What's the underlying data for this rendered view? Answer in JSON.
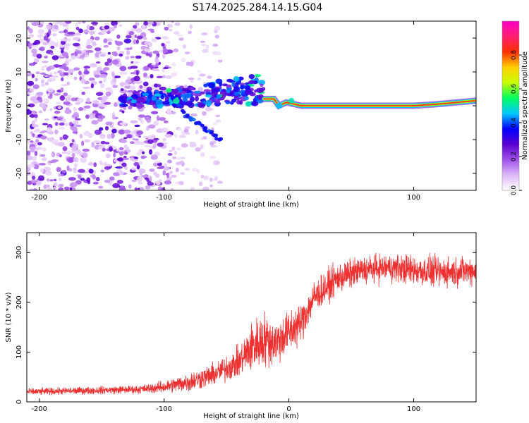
{
  "title": "S174.2025.284.14.15.G04",
  "chart_data": [
    {
      "type": "heatmap",
      "name": "spectrogram",
      "xlabel": "Height of straight line (km)",
      "ylabel": "Frequency (Hz)",
      "xlim": [
        -210,
        150
      ],
      "ylim": [
        -25,
        25
      ],
      "xticks": [
        -200,
        -100,
        0,
        100
      ],
      "yticks": [
        -20,
        -10,
        0,
        10,
        20
      ],
      "colorbar": {
        "label": "Normalized spectral amplitude",
        "range": [
          0,
          1
        ],
        "ticks": [
          0.0,
          0.2,
          0.4,
          0.6,
          0.8
        ],
        "tick_labels": [
          "0.0",
          "0.2",
          "0.4",
          "0.6",
          "0.8"
        ],
        "colors": [
          "#ffffff",
          "#dcb8f8",
          "#a050e8",
          "#5a00d0",
          "#0000ff",
          "#00c8ff",
          "#00ff60",
          "#c8ff00",
          "#ffd000",
          "#ff3000",
          "#ff2070",
          "#ff00c8"
        ]
      },
      "features": {
        "noise_region": {
          "x_range": [
            -210,
            -95
          ],
          "freq_range": [
            -25,
            25
          ],
          "amplitude": [
            0.05,
            0.3
          ]
        },
        "scatter_region": {
          "x_range": [
            -135,
            -20
          ],
          "freq_center": [
            1,
            5
          ],
          "amplitude": [
            0.2,
            0.45
          ]
        },
        "branch": {
          "from": [
            -85,
            -2
          ],
          "to": [
            -55,
            -10
          ]
        },
        "carrier": [
          {
            "x": -20,
            "f": 2
          },
          {
            "x": -12,
            "f": 2
          },
          {
            "x": -8,
            "f": 0
          },
          {
            "x": -2,
            "f": 1
          },
          {
            "x": 10,
            "f": 0
          },
          {
            "x": 50,
            "f": 0
          },
          {
            "x": 100,
            "f": 0
          },
          {
            "x": 120,
            "f": 0.5
          },
          {
            "x": 150,
            "f": 1.5
          }
        ],
        "carrier_amplitude": 0.85
      }
    },
    {
      "type": "line",
      "name": "snr",
      "xlabel": "Height of straight line (km)",
      "ylabel": "SNR (10 * v/v)",
      "xlim": [
        -210,
        150
      ],
      "ylim": [
        0,
        340
      ],
      "xticks": [
        -200,
        -100,
        0,
        100
      ],
      "yticks": [
        0,
        100,
        200,
        300
      ],
      "color": "#ee3030",
      "series": [
        {
          "name": "SNR",
          "envelope": {
            "x": [
              -210,
              -120,
              -100,
              -80,
              -60,
              -40,
              -30,
              -20,
              -10,
              0,
              10,
              20,
              40,
              60,
              80,
              100,
              120,
              150
            ],
            "mean": [
              20,
              25,
              30,
              40,
              55,
              80,
              110,
              125,
              120,
              140,
              160,
              210,
              250,
              265,
              270,
              265,
              260,
              265
            ],
            "spread": [
              12,
              15,
              22,
              35,
              40,
              55,
              90,
              100,
              80,
              80,
              70,
              60,
              55,
              50,
              50,
              55,
              55,
              50
            ]
          }
        }
      ]
    }
  ]
}
